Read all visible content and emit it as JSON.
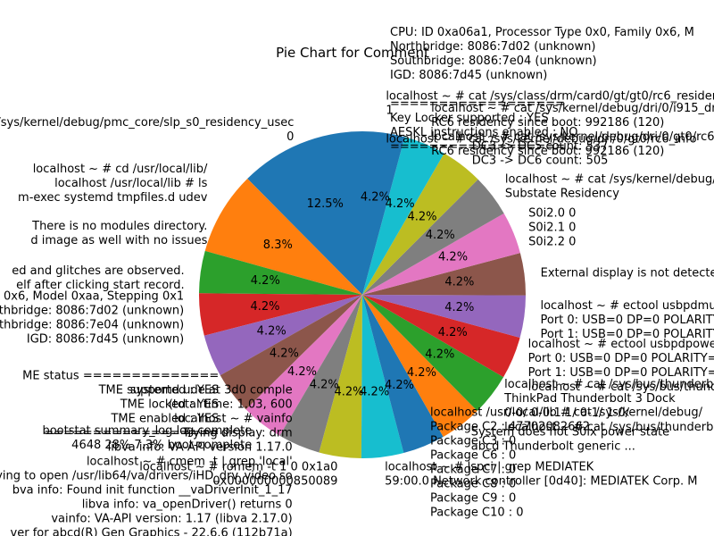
{
  "chart_data": {
    "type": "pie",
    "title": "Pie Chart for Comment",
    "start_angle": 90,
    "direction": "counterclockwise",
    "colors": [
      "#1f77b4",
      "#ff7f0e",
      "#2ca02c",
      "#d62728",
      "#9467bd",
      "#8c564b",
      "#e377c2",
      "#7f7f7f",
      "#bcbd22",
      "#17becf"
    ],
    "slices": [
      {
        "value": 12.5,
        "label": "12.5%",
        "category": [
          "/sys/kernel/debug/pmc_core/slp_s0_residency_usec",
          "0"
        ]
      },
      {
        "value": 8.3,
        "label": "8.3%",
        "category": [
          "localhost ~ # cd /usr/local/lib/",
          "localhost /usr/local/lib # ls",
          "m-exec  systemd  tmpfiles.d  udev",
          "",
          "There is no modules directory.",
          "d image as well with no issues"
        ]
      },
      {
        "value": 4.2,
        "label": "4.2%",
        "category": [
          "",
          "ed and glitches are observed.",
          "elf after clicking start record."
        ]
      },
      {
        "value": 4.2,
        "label": "4.2%",
        "category": [
          "0x6, Model 0xaa, Stepping 0x1",
          "thbridge: 8086:7d02 (unknown)",
          "thbridge: 8086:7e04 (unknown)",
          "IGD: 8086:7d45 (unknown)"
        ]
      },
      {
        "value": 4.2,
        "label": "4.2%",
        "category": [
          ""
        ]
      },
      {
        "value": 4.2,
        "label": "4.2%",
        "category": [
          "ME status ==============",
          "TME supported : YES",
          "TME locked : YES",
          "TME enabled : YES",
          "=================="
        ]
      },
      {
        "value": 4.2,
        "label": "4.2%",
        "category": [
          "bootstat summary_log.log complete",
          "4648  28%  7.3%  boot-complete"
        ]
      },
      {
        "value": 4.2,
        "label": "4.2%",
        "category": [
          "systemd ude at 3d0 comple",
          "(total time: 1.03, 600",
          "localhost ~ # vainfo",
          "Trying display: drm",
          "libva info: VA-API version 1.17.0",
          "localhost ~ # cmem -t | grep 'local'",
          "ying to open /usr/lib64/va/drivers/iHD_drv_video.so",
          "bva info: Found init function __vaDriverInit_1_17",
          "libva info: va_openDriver() returns 0",
          "vainfo: VA-API version: 1.17 (libva 2.17.0)",
          "ver for abcd(R) Gen Graphics - 22.6.6 (112b71a)"
        ]
      },
      {
        "value": 4.2,
        "label": "4.2%",
        "category": [
          "localhost ~ # romem -t 1 0 0x1a0",
          "0x000000000850089"
        ]
      },
      {
        "value": 4.2,
        "label": "4.2%",
        "category": [
          "localhost ~ # lspci | grep MEDIATEK",
          "59:00.0 Network controller [0d40]: MEDIATEK Corp. M"
        ]
      },
      {
        "value": 4.2,
        "label": "4.2%",
        "category": [
          "localhost /usr/local/lib # cat /sys/kernel/debug/",
          "Package C2 : 47702082662",
          "Package C3 : 0",
          "Package C6 : 0",
          "Package C7 : 0",
          "Package C8 : 0",
          "Package C9 : 0",
          "Package C10 : 0"
        ]
      },
      {
        "value": 4.2,
        "label": "4.2%",
        "category": [
          "System does not S0ix power state",
          "abcd  Thunderbolt generic ..."
        ]
      },
      {
        "value": 4.2,
        "label": "4.2%",
        "category": [
          "localhost ~ # cat /sys/bus/thunderbolt/",
          "ThinkPad Thunderbolt 3 Dock",
          "0-0/     0-0:1.1/ 0-1/     1-0/",
          "localhost ~ # cat /sys/bus/thunderbolt/"
        ]
      },
      {
        "value": 4.2,
        "label": "4.2%",
        "category": [
          "localhost ~ # ectool usbpdpower",
          "Port 0: USB=0 DP=0 POLARITY=NORMAL",
          "Port 1: USB=0 DP=0 POLARITY=NORMAL",
          "localhost ~ # cat /sys/bus/thunderbolt"
        ]
      },
      {
        "value": 4.2,
        "label": "4.2%",
        "category": [
          "localhost ~ # ectool usbpdmuxinfo",
          "Port 0: USB=0 DP=0 POLARITY=NORMAL",
          "Port 1: USB=0 DP=0 POLARITY=NORMAL"
        ]
      },
      {
        "value": 4.2,
        "label": "4.2%",
        "category": [
          "External display is not detected"
        ]
      },
      {
        "value": 4.2,
        "label": "4.2%",
        "category": [
          "S0i2.0     0",
          "S0i2.1     0",
          "S0i2.2     0"
        ]
      },
      {
        "value": 4.2,
        "label": "4.2%",
        "category": [
          "localhost ~ # cat /sys/kernel/debug/pmc_core/substate_residencies",
          "Substate   Residency"
        ]
      },
      {
        "value": 4.2,
        "label": "4.2%",
        "category": [
          "DC3 -> DC5 count: 537",
          "DC3 -> DC6 count: 505"
        ]
      },
      {
        "value": 4.2,
        "label": "4.2%",
        "category": [
          "localhost ~ # cat /sys/kernel/debug/dri/0/i915_dmc_info",
          "RC6 residency since boot: 992186 (120)",
          "localhost ~ # cat /sys/kernel/debug/dri/0/gt0/rc6",
          "RC6 residency since boot: 992186 (120)"
        ]
      },
      {
        "value": 4.2,
        "label": "4.2%",
        "category": [
          "localhost ~ # cat /sys/class/drm/card0/gt/gt0/rc6_residency",
          "1",
          "",
          "localhost ~ # cat /sys/kernel/debug/dri/0/gt0/rc6_info"
        ]
      }
    ],
    "side_text": [
      "CPU: ID 0xa06a1, Processor Type 0x0, Family 0x6, M",
      "Northbridge: 8086:7d02 (unknown)",
      "Southbridge: 8086:7e04 (unknown)",
      "IGD: 8086:7d45 (unknown)",
      "",
      "==================",
      "Key Locker supported : YES",
      "AESKL instructions enabled : NO",
      "=================="
    ]
  }
}
